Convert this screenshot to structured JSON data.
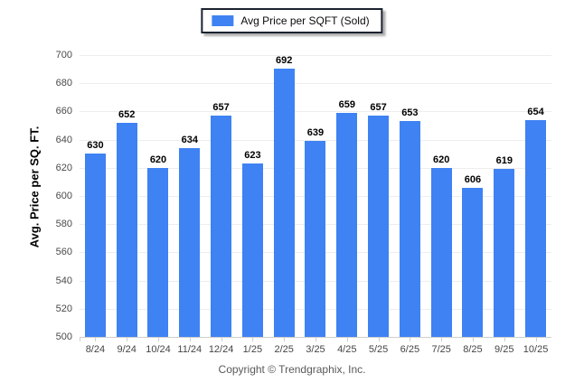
{
  "legend": {
    "swatch_color": "#3e82f3",
    "label": "Avg Price per SQFT (Sold)"
  },
  "y_axis": {
    "title": "Avg. Price per SQ. FT."
  },
  "footer": {
    "copyright": "Copyright © Trendgraphix, Inc."
  },
  "colors": {
    "bar": "#3e82f3",
    "gridline": "#ededed",
    "axis_line": "#cfcfcf",
    "tick_label": "#4a4a4a",
    "value_label": "#000000",
    "legend_border": "#1b2330"
  },
  "chart_data": {
    "type": "bar",
    "title": "",
    "xlabel": "",
    "ylabel": "Avg. Price per SQ. FT.",
    "categories": [
      "8/24",
      "9/24",
      "10/24",
      "11/24",
      "12/24",
      "1/25",
      "2/25",
      "3/25",
      "4/25",
      "5/25",
      "6/25",
      "7/25",
      "8/25",
      "9/25",
      "10/25"
    ],
    "values": [
      630,
      652,
      620,
      634,
      657,
      623,
      692,
      639,
      659,
      657,
      653,
      620,
      606,
      619,
      654
    ],
    "ylim": [
      500,
      700
    ],
    "ytick_step": 20,
    "grid": true,
    "data_labels": true,
    "legend_entries": [
      "Avg Price per SQFT (Sold)"
    ],
    "legend_position": "top-center"
  }
}
